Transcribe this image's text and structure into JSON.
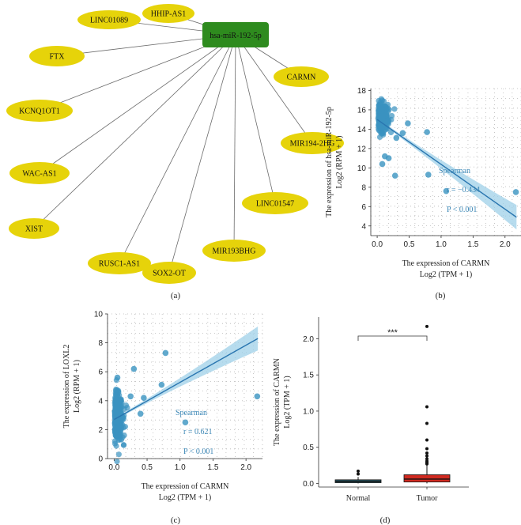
{
  "panel_labels": {
    "a": "(a)",
    "b": "(b)",
    "c": "(c)",
    "d": "(d)"
  },
  "colors": {
    "node_fill": "#e6d30a",
    "hub_fill": "#2e8b1e",
    "scatter_point": "#3a93c0",
    "fit_line": "#2a76b0",
    "ci_band": "#9fd0e8",
    "box_normal": "#2c5f6e",
    "box_tumor": "#d02a20",
    "stat_text": "#3a86b5"
  },
  "network": {
    "hub": "hsa-miR-192-5p",
    "nodes": [
      "HHIP-AS1",
      "LINC01089",
      "FTX",
      "CARMN",
      "KCNQ1OT1",
      "MIR194-2HG",
      "WAC-AS1",
      "LINC01547",
      "XIST",
      "MIR193BHG",
      "RUSC1-AS1",
      "SOX2-OT"
    ]
  },
  "chart_data": [
    {
      "id": "b",
      "type": "scatter",
      "xlabel": "The expression of CARMN",
      "xlabel2": "Log2 (TPM + 1)",
      "ylabel": "The expression of hsa-miR-192-5p",
      "ylabel2": "Log2 (RPM + 1)",
      "xlim": [
        -0.1,
        2.25
      ],
      "ylim": [
        3.0,
        18.2
      ],
      "xticks": [
        "0.0",
        "0.5",
        "1.0",
        "1.5",
        "2.0"
      ],
      "yticks": [
        "4",
        "6",
        "8",
        "10",
        "12",
        "14",
        "16",
        "18"
      ],
      "xtick_values": [
        0.0,
        0.5,
        1.0,
        1.5,
        2.0
      ],
      "ytick_values": [
        4,
        6,
        8,
        10,
        12,
        14,
        16,
        18
      ],
      "fit": {
        "x": [
          0.0,
          2.18
        ],
        "y": [
          15.0,
          4.9
        ]
      },
      "grid": true,
      "outliers": [
        {
          "x": 0.78,
          "y": 13.7
        },
        {
          "x": 0.48,
          "y": 14.6
        },
        {
          "x": 0.12,
          "y": 11.2
        },
        {
          "x": 0.18,
          "y": 11.0
        },
        {
          "x": 0.08,
          "y": 10.4
        },
        {
          "x": 0.28,
          "y": 9.2
        },
        {
          "x": 0.8,
          "y": 9.3
        },
        {
          "x": 1.08,
          "y": 7.6
        },
        {
          "x": 2.17,
          "y": 7.5
        },
        {
          "x": 0.3,
          "y": 13.1
        },
        {
          "x": 0.4,
          "y": 13.6
        }
      ],
      "cluster": {
        "x_center": 0.06,
        "x_spread": 0.12,
        "y_center": 15.2,
        "y_spread": 1.1,
        "count": 260
      },
      "stats": {
        "method": "Spearman",
        "r": "r = −0.434",
        "p": "P < 0.001"
      }
    },
    {
      "id": "c",
      "type": "scatter",
      "xlabel": "The expression of CARMN",
      "xlabel2": "Log2 (TPM + 1)",
      "ylabel": "The expression of LOXL2",
      "ylabel2": "Log2 (RPM + 1)",
      "xlim": [
        -0.1,
        2.25
      ],
      "ylim": [
        0.0,
        10.0
      ],
      "xticks": [
        "0.0",
        "0.5",
        "1.0",
        "1.5",
        "2.0"
      ],
      "yticks": [
        "0",
        "2",
        "4",
        "6",
        "8",
        "10"
      ],
      "xtick_values": [
        0.0,
        0.5,
        1.0,
        1.5,
        2.0
      ],
      "ytick_values": [
        0,
        2,
        4,
        6,
        8,
        10
      ],
      "fit": {
        "x": [
          0.0,
          2.18
        ],
        "y": [
          2.7,
          8.3
        ]
      },
      "grid": true,
      "outliers": [
        {
          "x": 0.78,
          "y": 7.3
        },
        {
          "x": 0.3,
          "y": 6.2
        },
        {
          "x": 0.72,
          "y": 5.1
        },
        {
          "x": 0.4,
          "y": 3.1
        },
        {
          "x": 1.08,
          "y": 2.5
        },
        {
          "x": 2.17,
          "y": 4.3
        },
        {
          "x": 0.25,
          "y": 4.3
        },
        {
          "x": 0.45,
          "y": 4.2
        },
        {
          "x": 0.05,
          "y": 5.6
        }
      ],
      "cluster": {
        "x_center": 0.05,
        "x_spread": 0.1,
        "y_center": 2.9,
        "y_spread": 1.1,
        "count": 300
      },
      "stats": {
        "method": "Spearman",
        "r": "r = 0.621",
        "p": "P < 0.001"
      }
    },
    {
      "id": "d",
      "type": "box",
      "categories": [
        "Normal",
        "Tumor"
      ],
      "ylabel": "The expression of CARMN",
      "ylabel2": "Log2 (TPM + 1)",
      "ylim": [
        -0.05,
        2.3
      ],
      "yticks": [
        "0.0",
        "0.5",
        "1.0",
        "1.5",
        "2.0"
      ],
      "ytick_values": [
        0.0,
        0.5,
        1.0,
        1.5,
        2.0
      ],
      "significance": "***",
      "boxes": [
        {
          "name": "Normal",
          "q1": 0.01,
          "median": 0.03,
          "q3": 0.05,
          "whisker_low": 0.0,
          "whisker_high": 0.09,
          "outliers": [
            0.13,
            0.17
          ]
        },
        {
          "name": "Tumor",
          "q1": 0.02,
          "median": 0.06,
          "q3": 0.12,
          "whisker_low": 0.0,
          "whisker_high": 0.28,
          "outliers": [
            2.17,
            1.06,
            0.83,
            0.6,
            0.48,
            0.42,
            0.38,
            0.34,
            0.31,
            0.29,
            0.28,
            0.27
          ]
        }
      ]
    }
  ]
}
